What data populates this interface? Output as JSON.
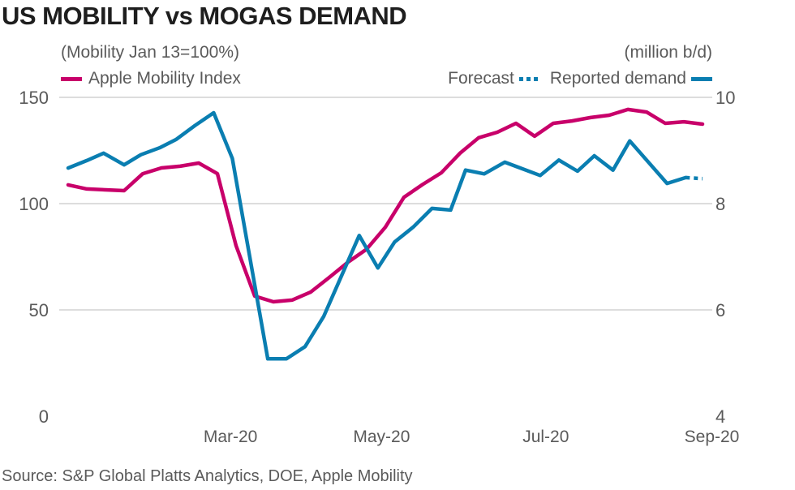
{
  "chart_data": {
    "type": "line",
    "title": "US MOBILITY vs MOGAS DEMAND",
    "left_axis_label": "(Mobility Jan 13=100%)",
    "right_axis_label": "(million b/d)",
    "source": "Source: S&P Global Platts Analytics, DOE, Apple Mobility",
    "left_ylim": [
      0,
      150
    ],
    "left_ticks": [
      0,
      50,
      100,
      150
    ],
    "right_ylim": [
      4,
      10
    ],
    "right_ticks": [
      4,
      6,
      8,
      10
    ],
    "xlim": [
      0,
      34.5
    ],
    "x_ticks": [
      {
        "label": "Mar-20",
        "at": 8.7
      },
      {
        "label": "May-20",
        "at": 16.8
      },
      {
        "label": "Jul-20",
        "at": 25.6
      },
      {
        "label": "Sep-20",
        "at": 34.5
      }
    ],
    "grid": true,
    "legend": {
      "mobility": "Apple Mobility Index",
      "forecast": "Forecast",
      "reported": "Reported demand"
    },
    "colors": {
      "mobility": "#c8006a",
      "demand": "#0a7eb1",
      "grid": "#dddddd"
    },
    "series": [
      {
        "name": "Apple Mobility Index",
        "axis": "left",
        "x": [
          0,
          1,
          2,
          3,
          4,
          5,
          6,
          7,
          8,
          9,
          10,
          11,
          12,
          13,
          14,
          15,
          16,
          17,
          18,
          19,
          20,
          21,
          22,
          23,
          24,
          25,
          26,
          27,
          28,
          29,
          30,
          31,
          32,
          33,
          34
        ],
        "values": [
          108.8,
          106.9,
          106.5,
          106.1,
          114.1,
          116.8,
          117.6,
          119.1,
          114.1,
          80.2,
          56.5,
          53.8,
          54.6,
          58.4,
          65.3,
          72.5,
          78.6,
          88.9,
          103,
          109,
          114.5,
          123.7,
          131,
          133.6,
          137.8,
          131.7,
          137.8,
          138.9,
          140.5,
          141.6,
          144.3,
          143.1,
          137.8,
          138.5,
          137.4
        ]
      },
      {
        "name": "Reported demand",
        "axis": "right",
        "x": [
          0,
          1,
          1.9,
          3,
          3.9,
          4.9,
          5.8,
          6.8,
          7.8,
          8.8,
          10.7,
          11.7,
          12.7,
          13.7,
          15.6,
          16.6,
          17.5,
          18.5,
          19.5,
          20.5,
          21.3,
          22.3,
          23.4,
          25.3,
          26.3,
          27.3,
          28.2,
          29.2,
          30.1,
          32.1,
          33.1
        ],
        "values": [
          8.67,
          8.81,
          8.95,
          8.73,
          8.92,
          9.05,
          9.21,
          9.47,
          9.71,
          8.85,
          5.08,
          5.08,
          5.31,
          5.88,
          7.4,
          6.79,
          7.28,
          7.56,
          7.91,
          7.88,
          8.63,
          8.56,
          8.78,
          8.53,
          8.82,
          8.61,
          8.9,
          8.63,
          9.18,
          8.38,
          8.49
        ]
      },
      {
        "name": "Forecast",
        "axis": "right",
        "dashed": true,
        "x": [
          33.1,
          34.0
        ],
        "values": [
          8.49,
          8.47
        ]
      }
    ]
  }
}
